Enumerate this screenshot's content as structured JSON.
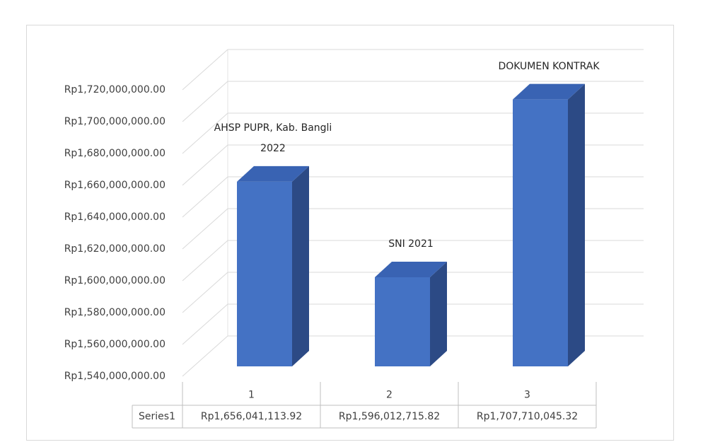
{
  "chart_data": {
    "type": "bar3d",
    "categories": [
      "1",
      "2",
      "3"
    ],
    "series": [
      {
        "name": "Series1",
        "color": "#4472c4",
        "values": [
          1656041113.92,
          1596012715.82,
          1707710045.32
        ],
        "value_labels": [
          "Rp1,656,041,113.92",
          "Rp1,596,012,715.82",
          "Rp1,707,710,045.32"
        ]
      }
    ],
    "annotations": [
      "AHSP PUPR, Kab. Bangli 2022",
      "SNI 2021",
      "DOKUMEN KONTRAK"
    ],
    "ylim": [
      1540000000,
      1720000000
    ],
    "yticks": [
      {
        "value": 1540000000,
        "label": "Rp1,540,000,000.00"
      },
      {
        "value": 1560000000,
        "label": "Rp1,560,000,000.00"
      },
      {
        "value": 1580000000,
        "label": "Rp1,580,000,000.00"
      },
      {
        "value": 1600000000,
        "label": "Rp1,600,000,000.00"
      },
      {
        "value": 1620000000,
        "label": "Rp1,620,000,000.00"
      },
      {
        "value": 1640000000,
        "label": "Rp1,640,000,000.00"
      },
      {
        "value": 1660000000,
        "label": "Rp1,660,000,000.00"
      },
      {
        "value": 1680000000,
        "label": "Rp1,680,000,000.00"
      },
      {
        "value": 1700000000,
        "label": "Rp1,700,000,000.00"
      },
      {
        "value": 1720000000,
        "label": "Rp1,720,000,000.00"
      }
    ],
    "grid": true
  }
}
